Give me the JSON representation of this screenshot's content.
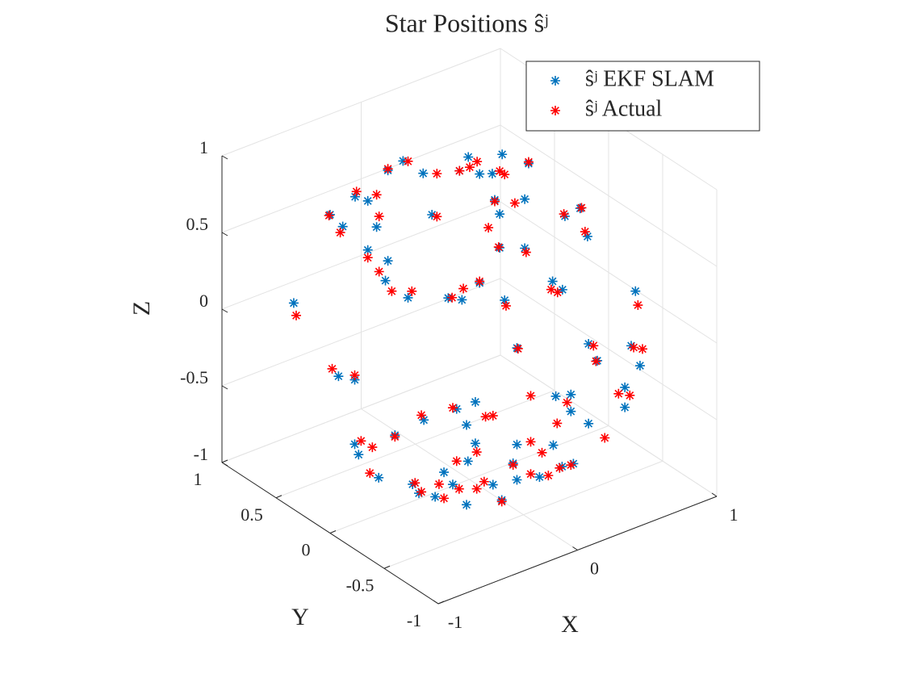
{
  "chart_data": {
    "type": "scatter3d",
    "title": "Star Positions ŝʲ",
    "xlabel": "X",
    "ylabel": "Y",
    "zlabel": "Z",
    "xlim": [
      -1,
      1
    ],
    "ylim": [
      -1,
      1
    ],
    "zlim": [
      -1,
      1
    ],
    "xticks": [
      -1,
      0,
      1
    ],
    "yticks": [
      -1,
      -0.5,
      0,
      0.5,
      1
    ],
    "zticks": [
      -1,
      -0.5,
      0,
      0.5,
      1
    ],
    "grid": true,
    "legend": "northeast",
    "series": [
      {
        "name": "ŝʲ EKF SLAM",
        "color": "#0072bd",
        "marker": "*",
        "x": [
          0.21,
          0.36,
          0.48,
          -0.08,
          -0.15,
          0.01,
          0.17,
          0.26,
          0.32,
          -0.3,
          -0.24,
          -0.2,
          -0.41,
          -0.35,
          0.05,
          0.33,
          0.46,
          0.35,
          0.64,
          0.71,
          0.74,
          -0.24,
          -0.15,
          -0.16,
          0.35,
          0.46,
          0.26,
          -0.06,
          0.12,
          0.18,
          0.59,
          0.63,
          0.37,
          -0.57,
          0.96,
          0.0,
          0.32,
          0.36,
          0.51,
          0.55,
          -0.8,
          -0.73,
          0.48,
          0.48,
          0.17,
          0.24,
          0.24,
          0.32,
          -0.27,
          -0.19,
          -0.42,
          -0.23,
          -0.55,
          -0.73,
          -0.71,
          -0.62,
          -0.19,
          0.0,
          -0.02,
          0.16,
          -0.22,
          -0.11,
          0.0,
          0.1,
          0.2,
          0.25,
          -0.33,
          -0.44,
          -0.37,
          -0.47,
          -0.23,
          -0.29,
          -0.07
        ],
        "y": [
          0.28,
          0.16,
          0.07,
          0.51,
          0.56,
          0.44,
          0.31,
          0.24,
          0.2,
          0.67,
          0.63,
          0.6,
          0.76,
          0.72,
          0.41,
          0.19,
          0.08,
          0.17,
          -0.06,
          -0.11,
          -0.14,
          0.63,
          0.56,
          0.57,
          0.17,
          0.08,
          0.24,
          0.49,
          0.35,
          0.3,
          -0.01,
          -0.05,
          0.15,
          0.89,
          -0.3,
          -0.44,
          -0.69,
          -0.72,
          -0.84,
          -0.87,
          0.18,
          0.12,
          -0.82,
          -0.82,
          -0.58,
          -0.63,
          -0.63,
          -0.69,
          -0.23,
          -0.3,
          -0.12,
          -0.27,
          -0.02,
          0.12,
          0.11,
          0.04,
          -0.3,
          -0.44,
          -0.43,
          -0.57,
          -0.27,
          -0.36,
          -0.44,
          -0.52,
          -0.6,
          -0.64,
          -0.19,
          -0.1,
          -0.16,
          -0.08,
          -0.27,
          -0.22,
          -0.39
        ],
        "z": [
          0.9,
          0.92,
          0.86,
          0.87,
          0.81,
          0.79,
          0.81,
          0.79,
          0.79,
          0.64,
          0.61,
          0.44,
          0.52,
          0.44,
          0.52,
          0.62,
          0.63,
          0.53,
          0.52,
          0.57,
          0.39,
          0.29,
          0.22,
          0.09,
          0.31,
          0.31,
          0.08,
          -0.02,
          -0.02,
          -0.03,
          0.09,
          0.04,
          -0.03,
          -0.06,
          0.03,
          0.06,
          0.09,
          -0.02,
          0.08,
          -0.05,
          -0.13,
          -0.15,
          -0.19,
          -0.32,
          -0.25,
          -0.24,
          -0.35,
          -0.43,
          -0.34,
          -0.29,
          -0.41,
          -0.44,
          -0.51,
          -0.57,
          -0.64,
          -0.79,
          -0.56,
          -0.57,
          -0.69,
          -0.57,
          -0.68,
          -0.83,
          -0.8,
          -0.78,
          -0.71,
          -0.69,
          -0.75,
          -0.89,
          -0.91,
          -0.83,
          -0.96,
          -0.83,
          -0.93
        ]
      },
      {
        "name": "ŝʲ Actual",
        "color": "#ff0000",
        "marker": "*",
        "x": [
          0.22,
          0.35,
          0.48,
          -0.06,
          -0.15,
          0.07,
          0.17,
          0.25,
          0.37,
          -0.29,
          -0.2,
          -0.19,
          -0.41,
          -0.36,
          0.07,
          0.33,
          0.42,
          0.3,
          0.64,
          0.72,
          0.73,
          -0.24,
          -0.19,
          -0.13,
          0.35,
          0.47,
          0.26,
          -0.04,
          0.14,
          0.19,
          0.58,
          0.61,
          0.38,
          -0.56,
          0.97,
          0.0,
          0.34,
          0.35,
          0.56,
          0.52,
          -0.83,
          -0.73,
          0.45,
          0.5,
          0.06,
          0.22,
          0.18,
          0.39,
          -0.29,
          -0.11,
          -0.43,
          -0.14,
          -0.55,
          -0.7,
          -0.65,
          -0.66,
          -0.18,
          0.06,
          -0.02,
          0.11,
          -0.27,
          -0.15,
          0.06,
          0.14,
          0.19,
          0.24,
          -0.35,
          -0.43,
          -0.33,
          -0.46,
          -0.18,
          -0.26,
          -0.07
        ],
        "y": [
          0.28,
          0.17,
          0.07,
          0.49,
          0.56,
          0.39,
          0.31,
          0.25,
          0.15,
          0.67,
          0.6,
          0.59,
          0.77,
          0.73,
          0.39,
          0.19,
          0.12,
          0.21,
          -0.05,
          -0.11,
          -0.13,
          0.63,
          0.59,
          0.55,
          0.18,
          0.08,
          0.24,
          0.48,
          0.34,
          0.3,
          -0.01,
          -0.03,
          0.15,
          0.88,
          -0.31,
          -0.45,
          -0.71,
          -0.72,
          -0.88,
          -0.85,
          0.2,
          0.12,
          -0.8,
          -0.84,
          -0.49,
          -0.62,
          -0.58,
          -0.75,
          -0.22,
          -0.36,
          -0.11,
          -0.33,
          -0.02,
          0.1,
          0.06,
          0.07,
          -0.3,
          -0.49,
          -0.43,
          -0.53,
          -0.23,
          -0.33,
          -0.49,
          -0.55,
          -0.59,
          -0.63,
          -0.17,
          -0.11,
          -0.19,
          -0.09,
          -0.3,
          -0.24,
          -0.39
        ],
        "z": [
          0.83,
          0.81,
          0.87,
          0.87,
          0.82,
          0.79,
          0.81,
          0.87,
          0.79,
          0.67,
          0.65,
          0.51,
          0.51,
          0.4,
          0.51,
          0.61,
          0.6,
          0.44,
          0.53,
          0.57,
          0.42,
          0.24,
          0.15,
          0.02,
          0.31,
          0.28,
          0.09,
          0.02,
          -0.02,
          0.04,
          0.04,
          0.02,
          -0.07,
          -0.14,
          -0.06,
          0.06,
          0.08,
          -0.02,
          0.06,
          0.07,
          -0.08,
          -0.12,
          -0.23,
          -0.24,
          -0.25,
          -0.29,
          -0.43,
          -0.52,
          -0.33,
          -0.38,
          -0.38,
          -0.39,
          -0.52,
          -0.55,
          -0.59,
          -0.76,
          -0.62,
          -0.55,
          -0.7,
          -0.62,
          -0.68,
          -0.81,
          -0.76,
          -0.77,
          -0.72,
          -0.7,
          -0.83,
          -0.88,
          -0.92,
          -0.82,
          -0.86,
          -0.86,
          -0.94
        ]
      }
    ]
  }
}
